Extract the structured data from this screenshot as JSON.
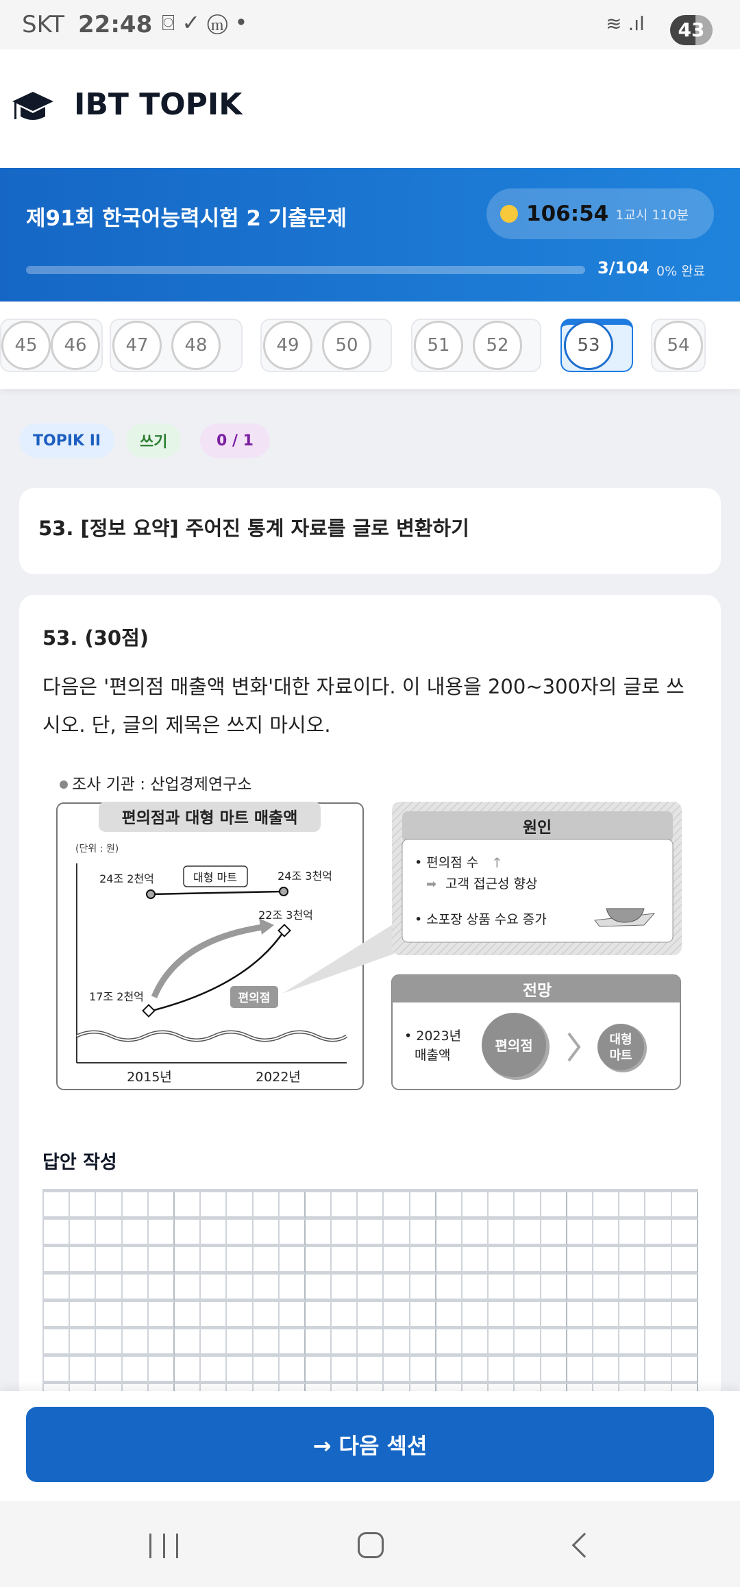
{
  "status_bar": {
    "carrier": "SKT",
    "time": "22:48",
    "battery": "43",
    "icons": [
      "screenshot-icon",
      "check-circle-icon",
      "gmail-icon",
      "dot-icon",
      "wifi-icon",
      "signal-icon"
    ]
  },
  "header": {
    "logo_icon": "graduation-cap-icon",
    "title": "IBT TOPIK"
  },
  "banner": {
    "title": "제91회 한국어능력시험 2 기출문제",
    "timer": "106:54",
    "timer_sub": "1교시 110분",
    "progress_count": "3/104",
    "progress_pct": "0% 완료",
    "progress_fraction": 0,
    "accent": "#1667c5"
  },
  "question_nav": {
    "items": [
      "45",
      "46",
      "47",
      "48",
      "49",
      "50",
      "51",
      "52",
      "53",
      "54"
    ],
    "current": "53"
  },
  "tags": {
    "level": "TOPIK II",
    "section": "쓰기",
    "count": "0 / 1"
  },
  "question_title": "53. [정보 요약] 주어진 통계 자료를 글로 변환하기",
  "question": {
    "number": "53. (30점)",
    "text": "다음은 '편의점 매출액 변화'대한 자료이다. 이 내용을 200~300자의 글로 쓰시오. 단, 글의 제목은 쓰지 마시오."
  },
  "figure": {
    "source": "조사 기관 : 산업경제연구소",
    "chart_title": "편의점과 대형 마트 매출액",
    "unit": "(단위 : 원)",
    "mart_label": "대형 마트",
    "store_label": "편의점",
    "mart_2015": "24조 2천억",
    "mart_2022": "24조 3천억",
    "store_2015": "17조 2천억",
    "store_2022": "22조 3천억",
    "x_2015": "2015년",
    "x_2022": "2022년",
    "cause_title": "원인",
    "cause_1": "• 편의점 수",
    "cause_1b": "고객 접근성 향상",
    "cause_2": "• 소포장 상품 수요 증가",
    "outlook_title": "전망",
    "outlook_1": "• 2023년",
    "outlook_2": "매출액",
    "outlook_store": "편의점",
    "outlook_mart_1": "대형",
    "outlook_mart_2": "마트"
  },
  "answer": {
    "label": "답안 작성",
    "columns": 25
  },
  "next_button": "→ 다음 섹션"
}
